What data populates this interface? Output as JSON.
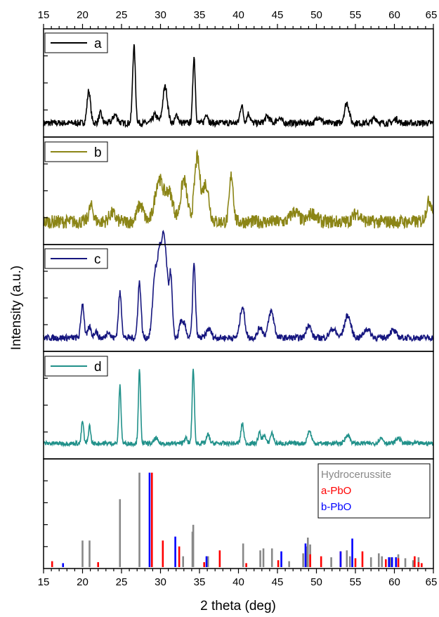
{
  "chart_data": {
    "type": "line",
    "xlabel": "2 theta (deg)",
    "ylabel": "Intensity (a.u.)",
    "xlim": [
      15,
      65
    ],
    "x_ticks": [
      15,
      20,
      25,
      30,
      35,
      40,
      45,
      50,
      55,
      60,
      65
    ],
    "x_tick_labels": [
      "15",
      "20",
      "25",
      "30",
      "35",
      "40",
      "45",
      "50",
      "55",
      "60",
      "65"
    ],
    "grid": false,
    "panels": [
      {
        "legend": "a",
        "color": "#000000",
        "baseline": 0.06,
        "noise": 0.04,
        "peaks": [
          [
            20.8,
            0.4,
            0.22
          ],
          [
            22.3,
            0.12,
            0.2
          ],
          [
            24.2,
            0.1,
            0.3
          ],
          [
            26.6,
            0.95,
            0.18
          ],
          [
            29.3,
            0.1,
            0.3
          ],
          [
            30.6,
            0.45,
            0.3
          ],
          [
            32.1,
            0.1,
            0.2
          ],
          [
            34.3,
            0.82,
            0.16
          ],
          [
            35.9,
            0.12,
            0.2
          ],
          [
            40.4,
            0.22,
            0.2
          ],
          [
            41.3,
            0.12,
            0.2
          ],
          [
            43.7,
            0.08,
            0.3
          ],
          [
            45.2,
            0.06,
            0.3
          ],
          [
            50.3,
            0.08,
            0.3
          ],
          [
            53.9,
            0.25,
            0.3
          ],
          [
            57.5,
            0.06,
            0.3
          ],
          [
            60.2,
            0.05,
            0.3
          ]
        ]
      },
      {
        "legend": "b",
        "color": "#8b8516",
        "baseline": 0.12,
        "noise": 0.08,
        "peaks": [
          [
            21.1,
            0.18,
            0.3
          ],
          [
            23.8,
            0.1,
            0.4
          ],
          [
            27.4,
            0.2,
            0.4
          ],
          [
            29.8,
            0.5,
            0.5
          ],
          [
            31.1,
            0.35,
            0.5
          ],
          [
            33.0,
            0.5,
            0.4
          ],
          [
            34.7,
            0.75,
            0.35
          ],
          [
            35.8,
            0.45,
            0.4
          ],
          [
            39.1,
            0.55,
            0.25
          ],
          [
            47.2,
            0.12,
            0.5
          ],
          [
            49.5,
            0.1,
            0.5
          ],
          [
            55.2,
            0.1,
            0.5
          ],
          [
            64.5,
            0.25,
            0.4
          ]
        ]
      },
      {
        "legend": "c",
        "color": "#16167f",
        "baseline": 0.05,
        "noise": 0.035,
        "peaks": [
          [
            20.0,
            0.38,
            0.2
          ],
          [
            20.9,
            0.12,
            0.2
          ],
          [
            21.7,
            0.08,
            0.2
          ],
          [
            23.3,
            0.08,
            0.2
          ],
          [
            24.8,
            0.5,
            0.2
          ],
          [
            27.3,
            0.62,
            0.2
          ],
          [
            29.3,
            0.72,
            0.3
          ],
          [
            29.9,
            0.88,
            0.25
          ],
          [
            30.4,
            0.98,
            0.22
          ],
          [
            30.8,
            0.6,
            0.2
          ],
          [
            31.3,
            0.72,
            0.2
          ],
          [
            32.6,
            0.18,
            0.2
          ],
          [
            33.1,
            0.15,
            0.2
          ],
          [
            34.3,
            0.82,
            0.18
          ],
          [
            36.2,
            0.1,
            0.3
          ],
          [
            40.5,
            0.35,
            0.3
          ],
          [
            42.8,
            0.12,
            0.3
          ],
          [
            44.2,
            0.3,
            0.35
          ],
          [
            49.0,
            0.15,
            0.3
          ],
          [
            52.1,
            0.1,
            0.4
          ],
          [
            54.0,
            0.25,
            0.4
          ],
          [
            56.5,
            0.1,
            0.4
          ],
          [
            59.8,
            0.08,
            0.4
          ]
        ]
      },
      {
        "legend": "d",
        "color": "#21918a",
        "baseline": 0.04,
        "noise": 0.025,
        "peaks": [
          [
            20.0,
            0.25,
            0.14
          ],
          [
            20.9,
            0.2,
            0.14
          ],
          [
            24.8,
            0.65,
            0.14
          ],
          [
            27.3,
            0.82,
            0.14
          ],
          [
            29.4,
            0.06,
            0.2
          ],
          [
            33.2,
            0.06,
            0.2
          ],
          [
            34.2,
            0.85,
            0.14
          ],
          [
            36.1,
            0.1,
            0.2
          ],
          [
            40.5,
            0.22,
            0.18
          ],
          [
            42.7,
            0.12,
            0.18
          ],
          [
            43.3,
            0.1,
            0.18
          ],
          [
            44.3,
            0.12,
            0.2
          ],
          [
            49.1,
            0.14,
            0.25
          ],
          [
            54.0,
            0.1,
            0.3
          ],
          [
            58.3,
            0.06,
            0.3
          ],
          [
            60.5,
            0.06,
            0.3
          ]
        ]
      },
      {
        "legend_entries": [
          {
            "name": "Hydrocerussite",
            "color": "#888888"
          },
          {
            "name": "a-PbO",
            "color": "#ff0000"
          },
          {
            "name": "b-PbO",
            "color": "#0000ff"
          }
        ],
        "ylim": [
          0,
          100
        ],
        "series": [
          {
            "name": "Hydrocerussite",
            "color": "#888888",
            "x": [
              20.0,
              20.9,
              24.8,
              27.3,
              34.1,
              34.2,
              40.6,
              42.8,
              43.2,
              44.3,
              48.3,
              48.7,
              48.9,
              49.2,
              51.9,
              53.9,
              54.3,
              57.0,
              58.0,
              58.4,
              59.5,
              60.5,
              61.4,
              62.4,
              63.1,
              32.9,
              36.1,
              46.5
            ],
            "values": [
              27,
              27,
              69,
              96,
              36,
              43,
              24,
              17,
              19,
              19,
              14,
              21,
              30,
              23,
              10,
              17,
              11,
              10,
              14,
              11,
              10,
              13,
              9,
              7,
              10,
              11,
              11,
              6
            ]
          },
          {
            "name": "a-PbO",
            "color": "#ff0000",
            "x": [
              16.1,
              22.0,
              28.9,
              30.3,
              32.4,
              35.6,
              37.6,
              41.0,
              45.1,
              49.2,
              50.6,
              53.1,
              55.0,
              55.9,
              58.9,
              60.5,
              62.6,
              63.1,
              63.5
            ],
            "values": [
              6,
              5,
              96,
              27,
              21,
              5,
              17,
              4,
              7,
              13,
              11,
              16,
              9,
              16,
              8,
              9,
              11,
              5,
              4
            ]
          },
          {
            "name": "b-PbO",
            "color": "#0000ff",
            "x": [
              17.5,
              28.6,
              31.9,
              35.9,
              45.5,
              48.6,
              53.1,
              54.6,
              59.3,
              59.7,
              60.2
            ],
            "values": [
              4,
              96,
              31,
              11,
              16,
              24,
              16,
              29,
              10,
              10,
              10
            ]
          }
        ]
      }
    ]
  }
}
